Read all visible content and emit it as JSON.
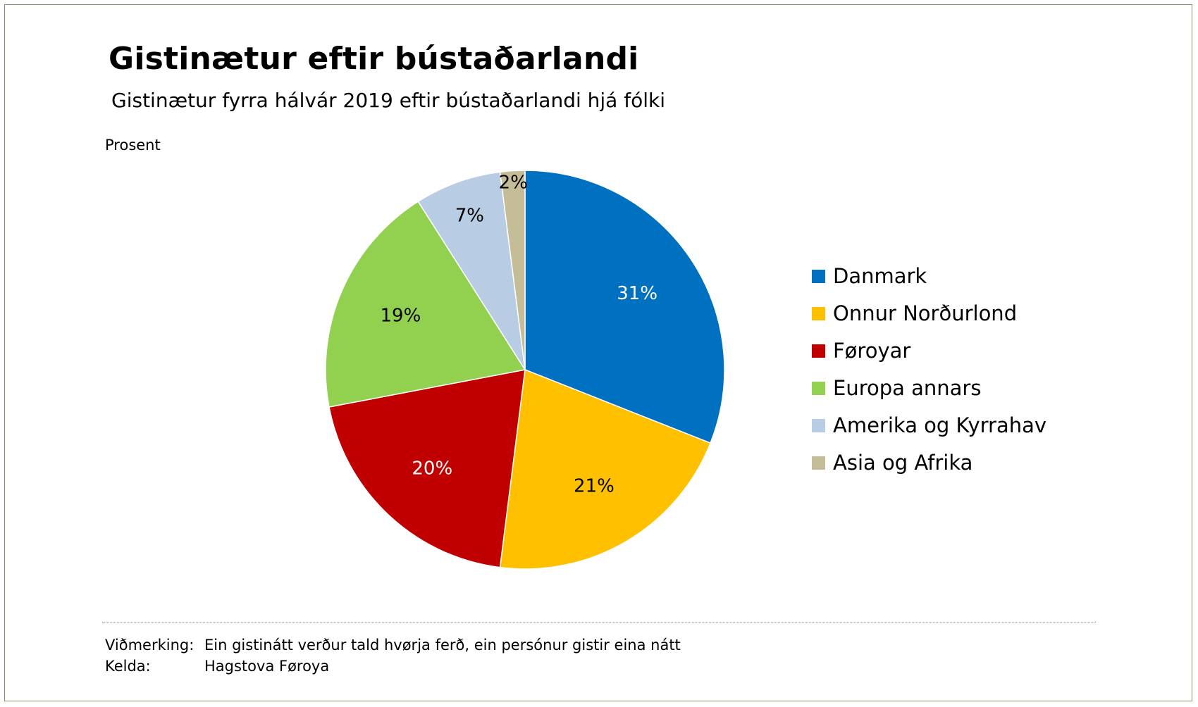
{
  "title": "Gistinætur eftir bústaðarlandi",
  "subtitle": "Gistinætur fyrra hálvár 2019 eftir bústaðarlandi hjá fólki",
  "unit_label": "Prosent",
  "notes": {
    "remark_label": "Viðmerking:",
    "remark_text": "Ein gistinátt verður tald hvørja ferð, ein persónur gistir eina nátt",
    "source_label": "Kelda:",
    "source_text": "Hagstova Føroya"
  },
  "chart_data": {
    "type": "pie",
    "title": "Gistinætur eftir bústaðarlandi",
    "subtitle": "Gistinætur fyrra hálvár 2019 eftir bústaðarlandi hjá fólki",
    "unit": "Prosent",
    "legend_position": "right",
    "slices": [
      {
        "label": "Danmark",
        "value": 31,
        "display": "31%",
        "color": "#0070c0",
        "label_color": "#ffffff"
      },
      {
        "label": "Onnur Norðurlond",
        "value": 21,
        "display": "21%",
        "color": "#ffc000",
        "label_color": "#000000"
      },
      {
        "label": "Føroyar",
        "value": 20,
        "display": "20%",
        "color": "#c00000",
        "label_color": "#ffffff"
      },
      {
        "label": "Europa annars",
        "value": 19,
        "display": "19%",
        "color": "#92d050",
        "label_color": "#000000"
      },
      {
        "label": "Amerika og Kyrrahav",
        "value": 7,
        "display": "7%",
        "color": "#b8cce4",
        "label_color": "#000000"
      },
      {
        "label": "Asia og Afrika",
        "value": 2,
        "display": "2%",
        "color": "#c4bd97",
        "label_color": "#000000"
      }
    ]
  }
}
